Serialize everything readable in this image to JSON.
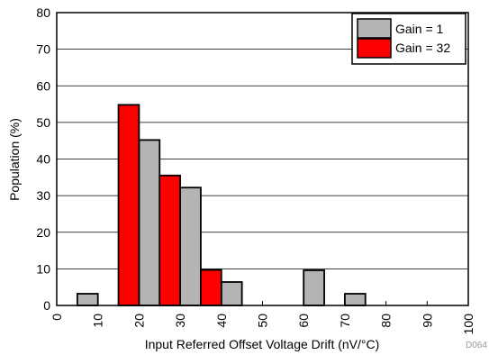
{
  "chart_data": {
    "type": "bar",
    "title": "",
    "xlabel": "Input Referred Offset Voltage Drift (nV/°C)",
    "ylabel": "Population (%)",
    "xlim": [
      0,
      100
    ],
    "ylim": [
      0,
      80
    ],
    "xticks": [
      "0",
      "10",
      "20",
      "30",
      "40",
      "50",
      "60",
      "70",
      "80",
      "90",
      "100"
    ],
    "yticks": [
      "0",
      "10",
      "20",
      "30",
      "40",
      "50",
      "60",
      "70",
      "80"
    ],
    "grid": "horizontal",
    "legend_position": "top-right",
    "bin_width": 5,
    "series": [
      {
        "name": "Gain = 1",
        "color": "#b4b4b4",
        "bins": [
          {
            "x0": 5,
            "x1": 10,
            "value": 3.2
          },
          {
            "x0": 20,
            "x1": 25,
            "value": 45.2
          },
          {
            "x0": 30,
            "x1": 35,
            "value": 32.2
          },
          {
            "x0": 40,
            "x1": 45,
            "value": 6.4
          },
          {
            "x0": 60,
            "x1": 65,
            "value": 9.6
          },
          {
            "x0": 70,
            "x1": 75,
            "value": 3.2
          }
        ]
      },
      {
        "name": "Gain = 32",
        "color": "#ff0000",
        "bins": [
          {
            "x0": 15,
            "x1": 20,
            "value": 54.8
          },
          {
            "x0": 25,
            "x1": 30,
            "value": 35.5
          },
          {
            "x0": 35,
            "x1": 40,
            "value": 9.7
          }
        ]
      }
    ]
  },
  "figure_id": "D064"
}
